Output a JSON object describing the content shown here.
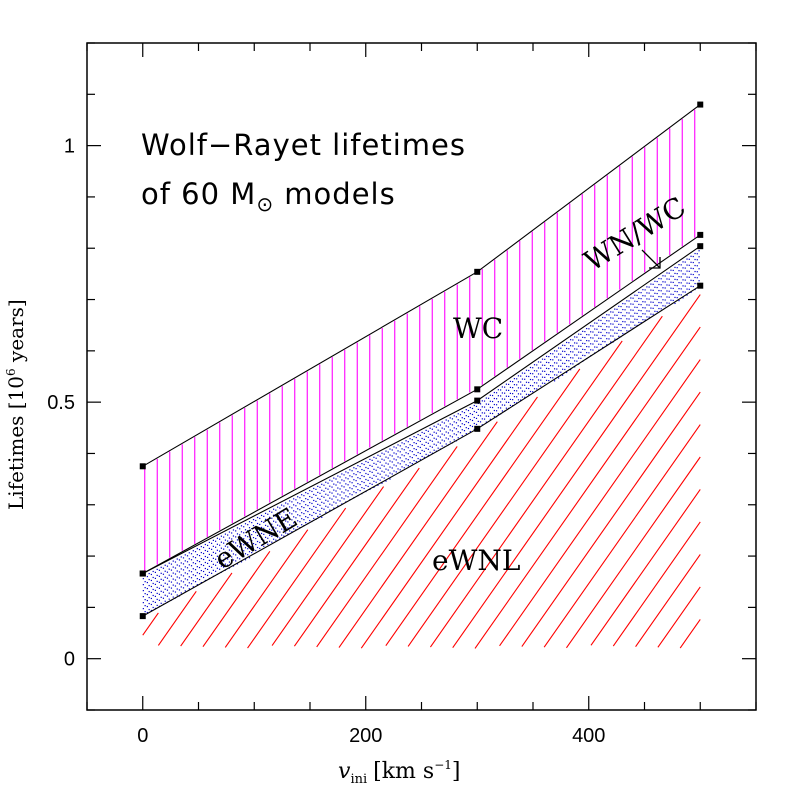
{
  "chart_data": {
    "type": "area",
    "title_line1": "Wolf−Rayet lifetimes",
    "title_line2_prefix": "of 60 M",
    "title_line2_symbol": "⊙",
    "title_line2_suffix": " models",
    "xlabel_var": "v",
    "xlabel_sub": "ini",
    "xlabel_units": "[km s",
    "xlabel_units_sup": "−1",
    "xlabel_units_end": "]",
    "ylabel_main": "Lifetimes [10",
    "ylabel_sup": "6",
    "ylabel_end": " years]",
    "xlim": [
      -50,
      550
    ],
    "ylim": [
      -0.1,
      1.2
    ],
    "x_ticks": [
      0,
      200,
      400
    ],
    "x_ticklabels": [
      "0",
      "200",
      "400"
    ],
    "y_ticks": [
      0,
      0.5,
      1
    ],
    "y_ticklabels": [
      "0",
      "0.5",
      "1"
    ],
    "x": [
      0,
      300,
      500
    ],
    "boundaries": [
      {
        "name": "eWNL end",
        "values": [
          0.083,
          0.448,
          0.727
        ]
      },
      {
        "name": "eWNE end",
        "values": [
          0.166,
          0.503,
          0.804
        ]
      },
      {
        "name": "WN/WC end",
        "values": [
          0.166,
          0.525,
          0.826
        ]
      },
      {
        "name": "WC end",
        "values": [
          0.375,
          0.754,
          1.08
        ]
      }
    ],
    "regions": [
      {
        "name": "eWNL",
        "label": "eWNL",
        "color": "#ff0000",
        "hatch": "diagonal"
      },
      {
        "name": "eWNE",
        "label": "eWNE",
        "color": "#0000cc",
        "hatch": "dots"
      },
      {
        "name": "WN/WC",
        "label": "WN/WC",
        "color": "#000000",
        "hatch": "none"
      },
      {
        "name": "WC",
        "label": "WC",
        "color": "#ff00ff",
        "hatch": "vertical"
      }
    ]
  }
}
